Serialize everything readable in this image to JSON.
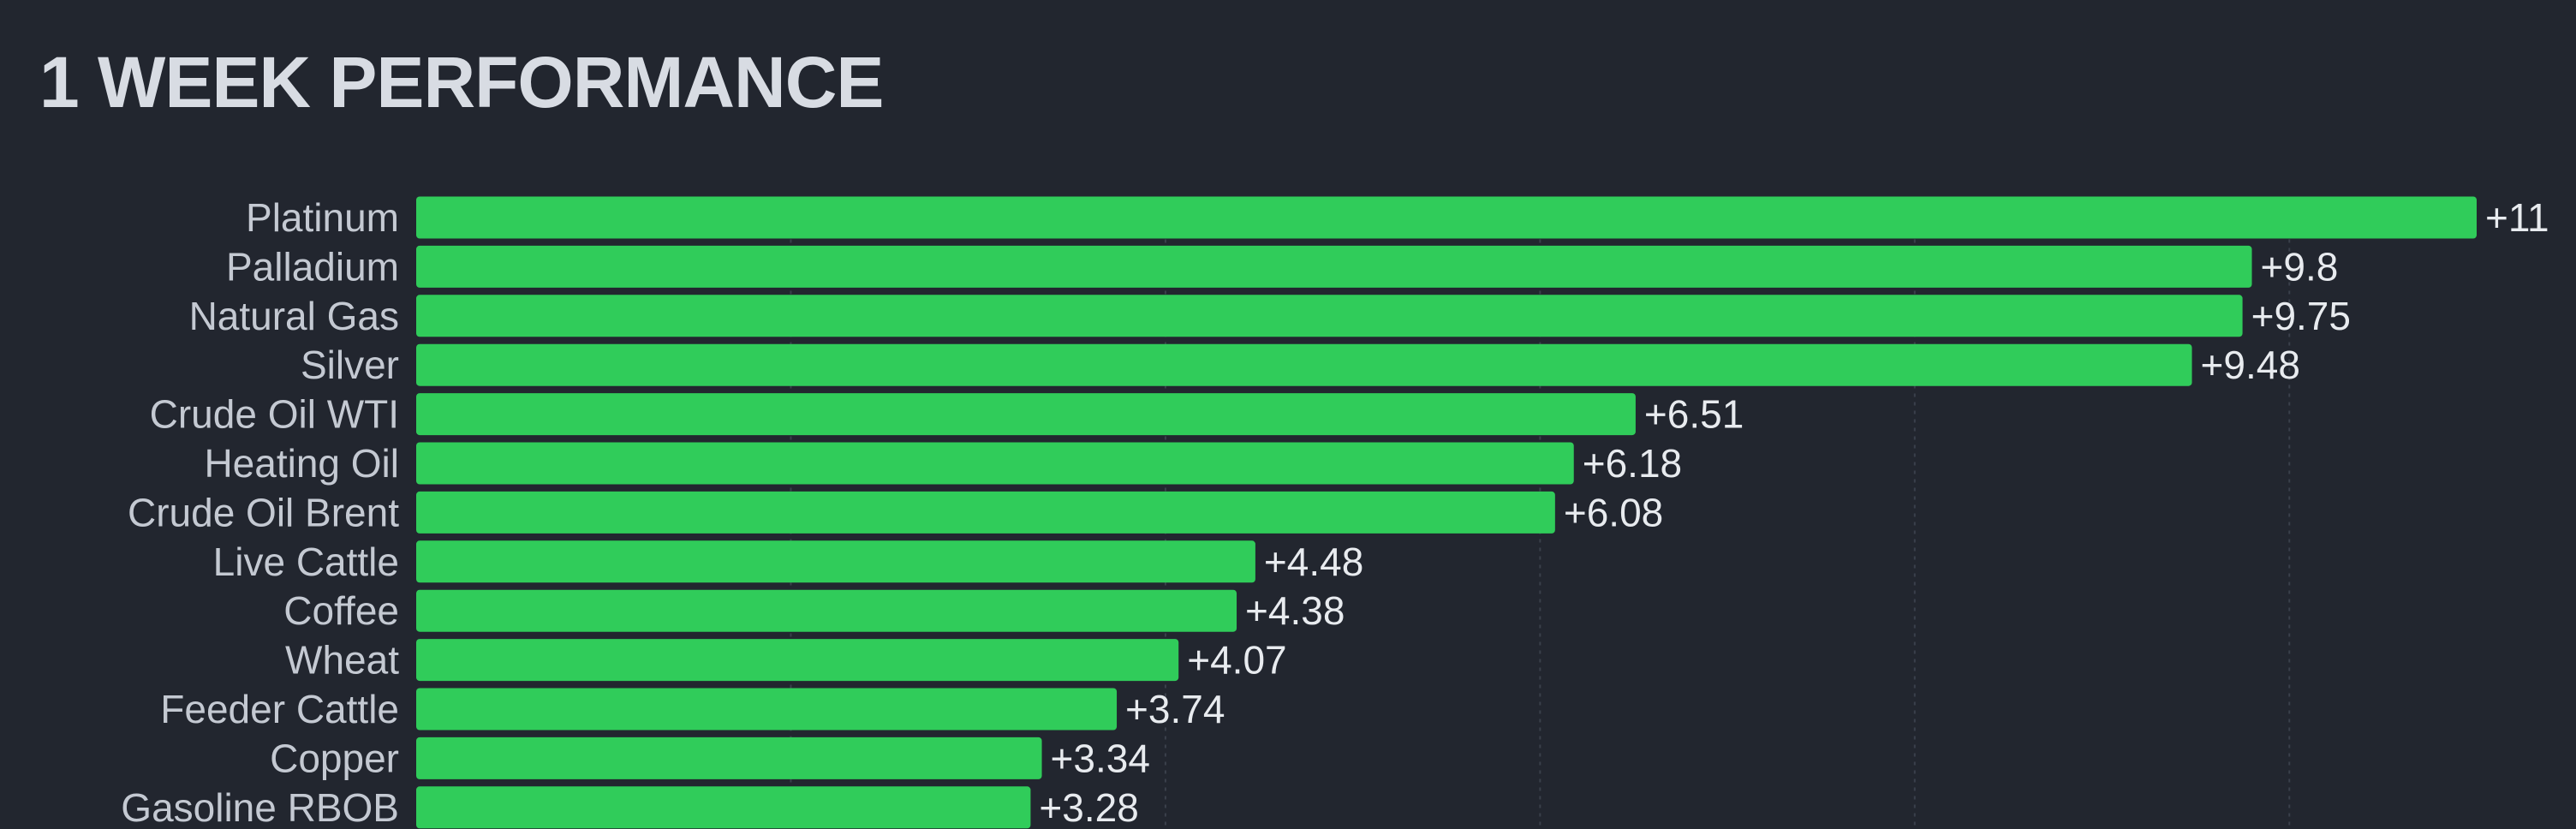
{
  "chart_data": {
    "type": "bar",
    "orientation": "horizontal",
    "title": "1 WEEK PERFORMANCE",
    "categories": [
      "Platinum",
      "Palladium",
      "Natural Gas",
      "Silver",
      "Crude Oil WTI",
      "Heating Oil",
      "Crude Oil Brent",
      "Live Cattle",
      "Coffee",
      "Wheat",
      "Feeder Cattle",
      "Copper",
      "Gasoline RBOB"
    ],
    "values": [
      11,
      9.8,
      9.75,
      9.48,
      6.51,
      6.18,
      6.08,
      4.48,
      4.38,
      4.07,
      3.74,
      3.34,
      3.28
    ],
    "value_labels": [
      "+11",
      "+9.8",
      "+9.75",
      "+9.48",
      "+6.51",
      "+6.18",
      "+6.08",
      "+4.48",
      "+4.38",
      "+4.07",
      "+3.74",
      "+3.34",
      "+3.28"
    ],
    "xlim": [
      0,
      11
    ],
    "grid": true,
    "bar_color": "#30cc5a",
    "background_color": "#22262f"
  }
}
